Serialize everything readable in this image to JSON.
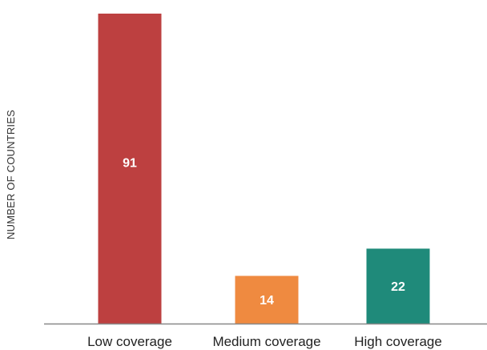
{
  "chart_data": {
    "type": "bar",
    "title": "",
    "xlabel": "",
    "ylabel": "NUMBER OF COUNTRIES",
    "categories": [
      "Low coverage",
      "Medium coverage",
      "High coverage"
    ],
    "values": [
      91,
      14,
      22
    ],
    "data_labels": [
      "91",
      "14",
      "22"
    ],
    "colors": [
      "#bd4040",
      "#ef8a40",
      "#1f8a7a"
    ],
    "axis_color": "#888888",
    "ylim": [
      0,
      91
    ],
    "grid": false,
    "legend": "none"
  }
}
